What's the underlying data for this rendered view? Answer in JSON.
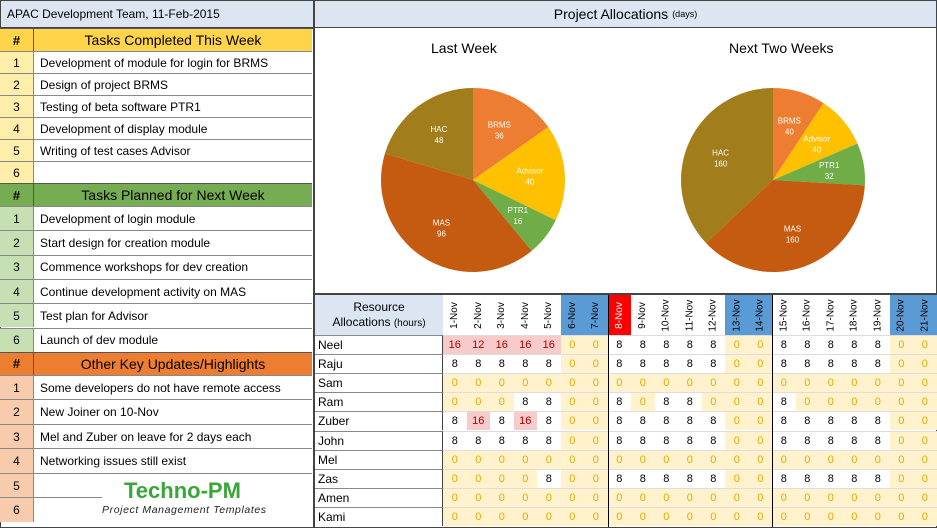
{
  "header": {
    "title": "APAC Development Team, 11-Feb-2015"
  },
  "allocations": {
    "title": "Project Allocations",
    "unit": "(days)"
  },
  "sections": [
    {
      "title": "Tasks Completed This Week",
      "items": [
        "Development of module for login for BRMS",
        "Design of project BRMS",
        "Testing of beta software PTR1",
        "Development of display module",
        "Writing of test cases Advisor",
        ""
      ]
    },
    {
      "title": "Tasks Planned for Next Week",
      "items": [
        "Development of login module",
        "Start design for creation module",
        "Commence workshops for dev creation",
        "Continue development activity on MAS",
        "Test plan for Advisor",
        "Launch of dev module"
      ]
    },
    {
      "title": "Other Key Updates/Highlights",
      "items": [
        "Some developers do not have remote access",
        "New Joiner on 10-Nov",
        "Mel and Zuber on leave for 2 days each",
        "Networking issues still exist",
        "",
        ""
      ]
    }
  ],
  "hash": "#",
  "nums": [
    "1",
    "2",
    "3",
    "4",
    "5",
    "6"
  ],
  "chart_data": [
    {
      "type": "pie",
      "title": "Last Week",
      "labels": [
        "BRMS",
        "Advisor",
        "PTR1",
        "MAS",
        "HAC"
      ],
      "values": [
        36,
        40,
        16,
        96,
        48
      ],
      "colors": [
        "#ed7d31",
        "#ffc000",
        "#70ad47",
        "#c55a11",
        "#a27d1c"
      ]
    },
    {
      "type": "pie",
      "title": "Next Two Weeks",
      "labels": [
        "BRMS",
        "Advisor",
        "PTR1",
        "MAS",
        "HAC"
      ],
      "values": [
        40,
        40,
        32,
        160,
        160
      ],
      "colors": [
        "#ed7d31",
        "#ffc000",
        "#70ad47",
        "#c55a11",
        "#a27d1c"
      ]
    }
  ],
  "resource_table": {
    "label": "Resource",
    "label2": "Allocations",
    "unit": "(hours)",
    "dates": [
      "1-Nov",
      "2-Nov",
      "3-Nov",
      "4-Nov",
      "5-Nov",
      "6-Nov",
      "7-Nov",
      "8-Nov",
      "9-Nov",
      "10-Nov",
      "11-Nov",
      "12-Nov",
      "13-Nov",
      "14-Nov",
      "15-Nov",
      "16-Nov",
      "17-Nov",
      "18-Nov",
      "19-Nov",
      "20-Nov",
      "21-Nov"
    ],
    "date_types": [
      "n",
      "n",
      "n",
      "n",
      "n",
      "w",
      "w",
      "t",
      "n",
      "n",
      "n",
      "n",
      "w",
      "w",
      "n",
      "n",
      "n",
      "n",
      "n",
      "w",
      "w"
    ],
    "rows": [
      {
        "name": "Neel",
        "values": [
          16,
          12,
          16,
          16,
          16,
          0,
          0,
          8,
          8,
          8,
          8,
          8,
          0,
          0,
          8,
          8,
          8,
          8,
          8,
          0,
          0
        ]
      },
      {
        "name": "Raju",
        "values": [
          8,
          8,
          8,
          8,
          8,
          0,
          0,
          8,
          8,
          8,
          8,
          8,
          0,
          0,
          8,
          8,
          8,
          8,
          8,
          0,
          0
        ]
      },
      {
        "name": "Sam",
        "values": [
          0,
          0,
          0,
          0,
          0,
          0,
          0,
          0,
          0,
          0,
          0,
          0,
          0,
          0,
          0,
          0,
          0,
          0,
          0,
          0,
          0
        ]
      },
      {
        "name": "Ram",
        "values": [
          0,
          0,
          0,
          8,
          8,
          0,
          0,
          8,
          0,
          8,
          8,
          0,
          0,
          0,
          8,
          0,
          0,
          0,
          0,
          0,
          0
        ]
      },
      {
        "name": "Zuber",
        "values": [
          8,
          16,
          8,
          16,
          8,
          0,
          0,
          8,
          8,
          8,
          8,
          8,
          0,
          0,
          8,
          8,
          8,
          8,
          8,
          0,
          0
        ]
      },
      {
        "name": "John",
        "values": [
          8,
          8,
          8,
          8,
          8,
          0,
          0,
          8,
          8,
          8,
          8,
          8,
          0,
          0,
          8,
          8,
          8,
          8,
          8,
          0,
          0
        ]
      },
      {
        "name": "Mel",
        "values": [
          0,
          0,
          0,
          0,
          0,
          0,
          0,
          0,
          0,
          0,
          0,
          0,
          0,
          0,
          0,
          0,
          0,
          0,
          0,
          0,
          0
        ]
      },
      {
        "name": "Zas",
        "values": [
          0,
          0,
          0,
          0,
          8,
          0,
          0,
          8,
          8,
          8,
          8,
          8,
          0,
          0,
          8,
          8,
          8,
          8,
          8,
          0,
          0
        ]
      },
      {
        "name": "Amen",
        "values": [
          0,
          0,
          0,
          0,
          0,
          0,
          0,
          0,
          0,
          0,
          0,
          0,
          0,
          0,
          0,
          0,
          0,
          0,
          0,
          0,
          0
        ]
      },
      {
        "name": "Kami",
        "values": [
          0,
          0,
          0,
          0,
          0,
          0,
          0,
          0,
          0,
          0,
          0,
          0,
          0,
          0,
          0,
          0,
          0,
          0,
          0,
          0,
          0
        ]
      }
    ]
  },
  "logo": {
    "name": "Techno-PM",
    "tagline": "Project Management Templates"
  }
}
